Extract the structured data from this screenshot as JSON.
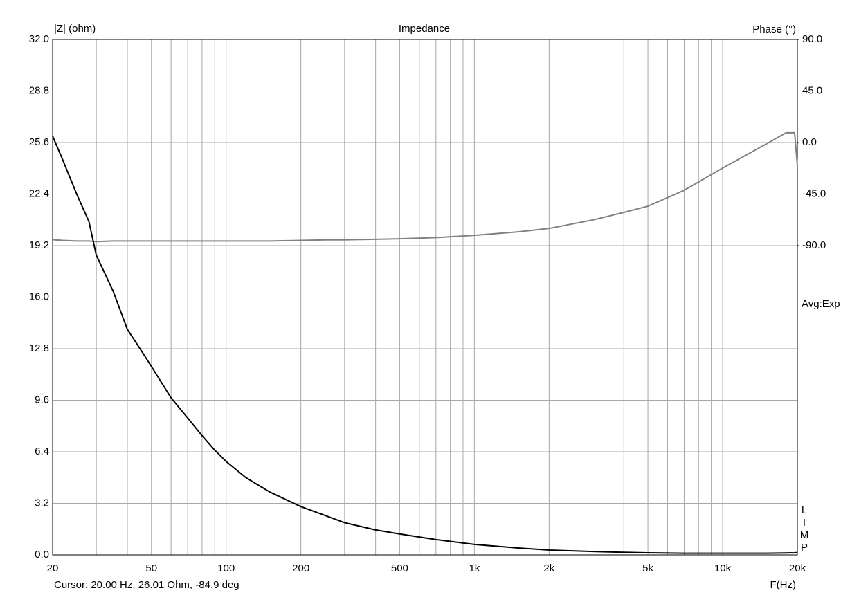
{
  "chart_data": {
    "type": "line",
    "title": "Impedance",
    "y_label": "|Z| (ohm)",
    "y2_label": "Phase (°)",
    "x_label": "F(Hz)",
    "annotation": "Avg:Exp",
    "side_label": "LIMP",
    "cursor": "Cursor: 20.00 Hz, 26.01 Ohm, -84.9 deg",
    "x_log": true,
    "grid": true,
    "x": [
      20,
      22,
      25,
      28,
      30,
      35,
      40,
      45,
      50,
      60,
      70,
      80,
      90,
      100,
      120,
      150,
      200,
      250,
      300,
      400,
      500,
      700,
      1000,
      1500,
      2000,
      3000,
      4000,
      5000,
      7000,
      10000,
      15000,
      18000,
      19500,
      20000
    ],
    "series": [
      {
        "color": "#000000",
        "values": [
          26.0,
          24.5,
          22.4,
          20.7,
          18.6,
          16.4,
          14.0,
          12.8,
          11.7,
          9.75,
          8.5,
          7.4,
          6.5,
          5.8,
          4.8,
          3.9,
          3.0,
          2.45,
          2.0,
          1.55,
          1.3,
          0.95,
          0.65,
          0.43,
          0.3,
          0.21,
          0.16,
          0.13,
          0.1,
          0.1,
          0.1,
          0.12,
          0.13,
          0.15
        ]
      },
      {
        "color": "#808080",
        "axis": "y2",
        "values": [
          -84.9,
          -85.5,
          -86,
          -86,
          -86.5,
          -86,
          -86,
          -86,
          -86,
          -86,
          -86,
          -86,
          -86,
          -86,
          -86,
          -86,
          -85.5,
          -85,
          -85,
          -84.5,
          -84,
          -83,
          -81,
          -78,
          -75,
          -67.6,
          -61,
          -55.6,
          -41.7,
          -22.3,
          -1.2,
          8.5,
          8.5,
          -20.5
        ]
      }
    ],
    "xlim": [
      20,
      20000
    ],
    "xticks": [
      20,
      50,
      100,
      200,
      500,
      {
        "value": 1000,
        "label": "1k"
      },
      {
        "value": 2000,
        "label": "2k"
      },
      {
        "value": 5000,
        "label": "5k"
      },
      {
        "value": 10000,
        "label": "10k"
      },
      {
        "value": 20000,
        "label": "20k"
      }
    ],
    "xminor_ticks": [
      30,
      40,
      60,
      70,
      80,
      90,
      300,
      400,
      600,
      700,
      800,
      900,
      3000,
      4000,
      6000,
      7000,
      8000,
      9000
    ],
    "ylim": [
      0,
      32
    ],
    "yticks": [
      {
        "value": 0,
        "label": "0.0"
      },
      3.2,
      6.4,
      9.6,
      12.8,
      {
        "value": 16,
        "label": "16.0"
      },
      19.2,
      22.4,
      25.6,
      28.8,
      {
        "value": 32,
        "label": "32.0"
      }
    ],
    "y2lim": [
      -360,
      90
    ],
    "y2ticks": [
      {
        "value": -90,
        "label": "-90.0"
      },
      {
        "value": -45,
        "label": "-45.0"
      },
      {
        "value": 0,
        "label": "0.0"
      },
      {
        "value": 45,
        "label": "45.0"
      },
      {
        "value": 90,
        "label": "90.0"
      }
    ]
  }
}
